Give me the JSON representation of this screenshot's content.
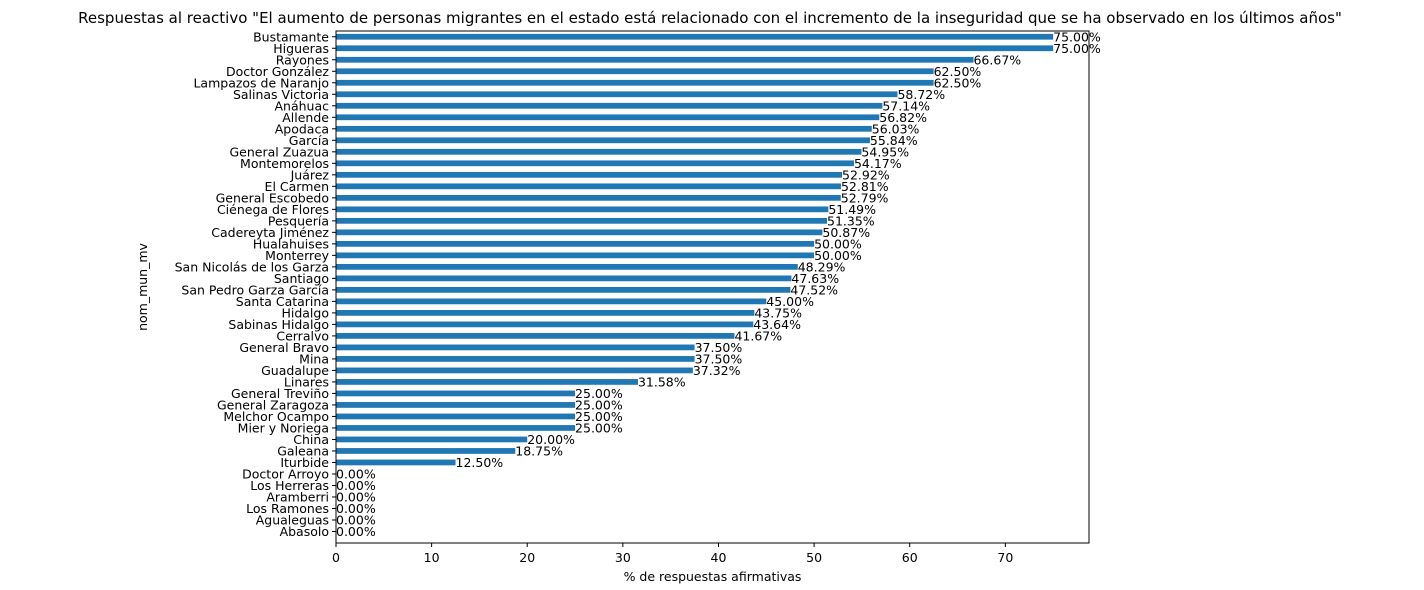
{
  "chart_data": {
    "type": "bar",
    "orientation": "horizontal",
    "title": "Respuestas al reactivo \"El aumento de personas migrantes en el estado está relacionado con el incremento de la inseguridad que se ha observado en los últimos años\"",
    "xlabel": "% de respuestas afirmativas",
    "ylabel": "nom_mun_mv",
    "xlim": [
      0,
      78.75
    ],
    "xticks": [
      0,
      10,
      20,
      30,
      40,
      50,
      60,
      70
    ],
    "grid": false,
    "bar_color": "#1f77b4",
    "categories": [
      "Bustamante",
      "Higueras",
      "Rayones",
      "Doctor González",
      "Lampazos de Naranjo",
      "Salinas Victoria",
      "Anáhuac",
      "Allende",
      "Apodaca",
      "García",
      "General Zuazua",
      "Montemorelos",
      "Juárez",
      "El Carmen",
      "General Escobedo",
      "Ciénega de Flores",
      "Pesquería",
      "Cadereyta Jiménez",
      "Hualahuises",
      "Monterrey",
      "San Nicolás de los Garza",
      "Santiago",
      "San Pedro Garza García",
      "Santa Catarina",
      "Hidalgo",
      "Sabinas Hidalgo",
      "Cerralvo",
      "General Bravo",
      "Mina",
      "Guadalupe",
      "Linares",
      "General Treviño",
      "General Zaragoza",
      "Melchor Ocampo",
      "Mier y Noriega",
      "China",
      "Galeana",
      "Iturbide",
      "Doctor Arroyo",
      "Los Herreras",
      "Aramberri",
      "Los Ramones",
      "Agualeguas",
      "Abasolo"
    ],
    "values": [
      75.0,
      75.0,
      66.67,
      62.5,
      62.5,
      58.72,
      57.14,
      56.82,
      56.03,
      55.84,
      54.95,
      54.17,
      52.92,
      52.81,
      52.79,
      51.49,
      51.35,
      50.87,
      50.0,
      50.0,
      48.29,
      47.63,
      47.52,
      45.0,
      43.75,
      43.64,
      41.67,
      37.5,
      37.5,
      37.32,
      31.58,
      25.0,
      25.0,
      25.0,
      25.0,
      20.0,
      18.75,
      12.5,
      0.0,
      0.0,
      0.0,
      0.0,
      0.0,
      0.0
    ],
    "data_labels": [
      "75.00%",
      "75.00%",
      "66.67%",
      "62.50%",
      "62.50%",
      "58.72%",
      "57.14%",
      "56.82%",
      "56.03%",
      "55.84%",
      "54.95%",
      "54.17%",
      "52.92%",
      "52.81%",
      "52.79%",
      "51.49%",
      "51.35%",
      "50.87%",
      "50.00%",
      "50.00%",
      "48.29%",
      "47.63%",
      "47.52%",
      "45.00%",
      "43.75%",
      "43.64%",
      "41.67%",
      "37.50%",
      "37.50%",
      "37.32%",
      "31.58%",
      "25.00%",
      "25.00%",
      "25.00%",
      "25.00%",
      "20.00%",
      "18.75%",
      "12.50%",
      "0.00%",
      "0.00%",
      "0.00%",
      "0.00%",
      "0.00%",
      "0.00%"
    ]
  }
}
